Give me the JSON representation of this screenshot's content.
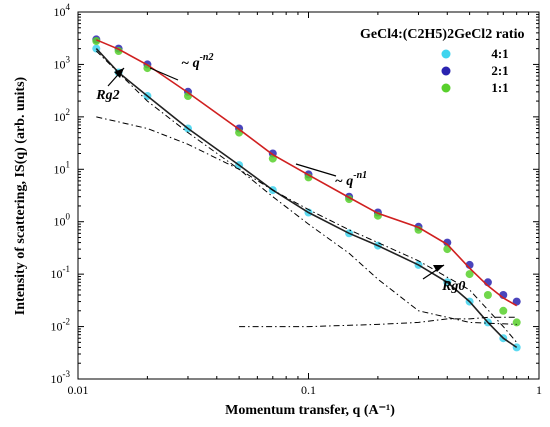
{
  "chart_data": {
    "type": "scatter",
    "xscale": "log",
    "yscale": "log",
    "xlim": [
      0.01,
      1
    ],
    "ylim": [
      0.001,
      10000
    ],
    "x_ticks": [
      "0.01",
      "0.1",
      "1"
    ],
    "y_ticks": [
      "10",
      "10",
      "10",
      "10",
      "10",
      "10",
      "10",
      "10"
    ],
    "y_tick_exponents": [
      "-3",
      "-2",
      "-1",
      "0",
      "1",
      "2",
      "3",
      "4"
    ],
    "xlabel": "Momentum transfer, q (A⁻¹)",
    "ylabel": "Intensity of scattering, IS(q) (arb. units)",
    "grid": false,
    "legend": {
      "placement": "top-right",
      "title": "GeCl4:(C2H5)2GeCl2 ratio",
      "entries": [
        "4:1",
        "2:1",
        "1:1"
      ]
    },
    "series": [
      {
        "name": "4:1",
        "color": "#3fd4ee",
        "x": [
          0.012,
          0.015,
          0.02,
          0.03,
          0.05,
          0.07,
          0.1,
          0.15,
          0.2,
          0.3,
          0.4,
          0.5,
          0.6,
          0.7,
          0.8
        ],
        "y": [
          2000,
          700,
          250,
          60,
          12,
          4,
          1.5,
          0.6,
          0.35,
          0.15,
          0.07,
          0.03,
          0.012,
          0.006,
          0.004
        ]
      },
      {
        "name": "2:1",
        "color": "#2a23b0",
        "x": [
          0.012,
          0.015,
          0.02,
          0.03,
          0.05,
          0.07,
          0.1,
          0.15,
          0.2,
          0.3,
          0.4,
          0.5,
          0.6,
          0.7,
          0.8
        ],
        "y": [
          3000,
          2000,
          1000,
          300,
          60,
          20,
          8,
          3,
          1.5,
          0.8,
          0.4,
          0.15,
          0.07,
          0.04,
          0.03
        ]
      },
      {
        "name": "1:1",
        "color": "#58d02c",
        "x": [
          0.012,
          0.015,
          0.02,
          0.03,
          0.05,
          0.07,
          0.1,
          0.15,
          0.2,
          0.3,
          0.4,
          0.5,
          0.6,
          0.7,
          0.8
        ],
        "y": [
          2800,
          1800,
          850,
          250,
          50,
          16,
          7,
          2.7,
          1.3,
          0.7,
          0.3,
          0.1,
          0.04,
          0.02,
          0.012
        ]
      }
    ],
    "fit_lines": [
      {
        "style": "solid",
        "color": "#d02020",
        "x": [
          0.012,
          0.015,
          0.02,
          0.03,
          0.05,
          0.07,
          0.1,
          0.15,
          0.2,
          0.3,
          0.4,
          0.5,
          0.6,
          0.7,
          0.8
        ],
        "y": [
          2950,
          1950,
          980,
          290,
          58,
          19,
          7.8,
          2.9,
          1.45,
          0.78,
          0.37,
          0.13,
          0.06,
          0.035,
          0.025
        ]
      },
      {
        "style": "solid",
        "color": "#222222",
        "x": [
          0.012,
          0.015,
          0.02,
          0.03,
          0.05,
          0.07,
          0.1,
          0.15,
          0.2,
          0.3,
          0.4,
          0.5,
          0.6,
          0.7,
          0.8
        ],
        "y": [
          2000,
          700,
          250,
          60,
          12,
          4,
          1.5,
          0.6,
          0.35,
          0.15,
          0.07,
          0.03,
          0.012,
          0.006,
          0.004
        ]
      },
      {
        "style": "dash-dot",
        "color": "#000000",
        "x": [
          0.012,
          0.02,
          0.03,
          0.05,
          0.07,
          0.1,
          0.15,
          0.2,
          0.3,
          0.5,
          0.8
        ],
        "y": [
          1800,
          200,
          50,
          10,
          3,
          0.9,
          0.25,
          0.08,
          0.02,
          0.012,
          0.011
        ]
      },
      {
        "style": "dash-dot",
        "color": "#000000",
        "x": [
          0.012,
          0.015,
          0.02,
          0.03,
          0.05,
          0.07,
          0.1,
          0.15,
          0.2,
          0.3,
          0.5,
          0.7,
          0.8
        ],
        "y": [
          100,
          80,
          60,
          30,
          10,
          4,
          1.7,
          0.7,
          0.4,
          0.18,
          0.05,
          0.01,
          0.005
        ]
      },
      {
        "style": "dash-dot",
        "color": "#000000",
        "x": [
          0.05,
          0.1,
          0.2,
          0.3,
          0.4,
          0.5,
          0.6,
          0.8
        ],
        "y": [
          0.01,
          0.01,
          0.011,
          0.012,
          0.014,
          0.014,
          0.015,
          0.015
        ]
      }
    ],
    "annotations": [
      {
        "text": "~ q",
        "superscript": "-n2",
        "x": 0.028,
        "y": 900
      },
      {
        "text": "~ q",
        "superscript": "-n1",
        "x": 0.13,
        "y": 5
      },
      {
        "text": "Rg2",
        "x": 0.012,
        "y": 220
      },
      {
        "text": "Rg0",
        "x": 0.38,
        "y": 0.05
      }
    ]
  }
}
